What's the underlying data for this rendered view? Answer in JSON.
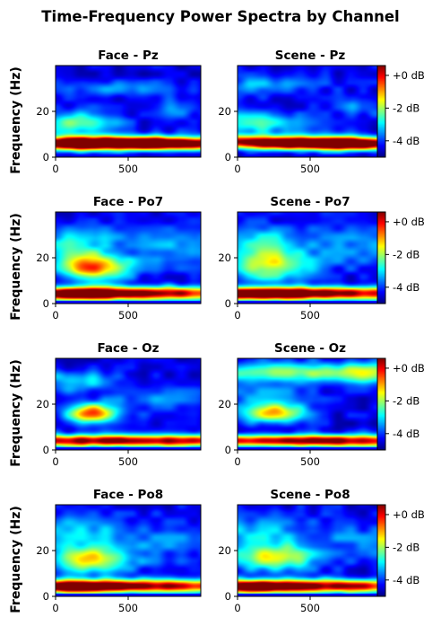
{
  "figure": {
    "title": "Time-Frequency Power Spectra by Channel",
    "ylabel": "Frequency (Hz)"
  },
  "colorbar": {
    "colormap": "jet",
    "range_db": [
      -5,
      0.6
    ],
    "ticks": [
      0,
      -2,
      -4
    ],
    "tick_labels": [
      "+0 dB",
      "-2 dB",
      "-4 dB"
    ]
  },
  "chart_data": [
    {
      "type": "heatmap",
      "condition": "Face",
      "channel": "Pz",
      "title": "Face - Pz",
      "xlim": [
        0,
        1000
      ],
      "ylim": [
        0,
        40
      ],
      "xticks": [
        0,
        500
      ],
      "yticks": [
        0,
        20
      ],
      "features": [
        {
          "t": 340,
          "f": 6.5,
          "st": 600,
          "sf": 2.0,
          "a": 1.0
        },
        {
          "t": 750,
          "f": 5.5,
          "st": 380,
          "sf": 1.8,
          "a": 0.65
        },
        {
          "t": 80,
          "f": 5.0,
          "st": 200,
          "sf": 1.8,
          "a": 0.4
        },
        {
          "t": 150,
          "f": 15,
          "st": 200,
          "sf": 3.5,
          "a": 0.4
        },
        {
          "t": 850,
          "f": 21,
          "st": 100,
          "sf": 3.0,
          "a": 0.18
        },
        {
          "t": 400,
          "f": 30,
          "st": 260,
          "sf": 2.5,
          "a": 0.2
        }
      ]
    },
    {
      "type": "heatmap",
      "condition": "Scene",
      "channel": "Pz",
      "title": "Scene - Pz",
      "xlim": [
        0,
        1000
      ],
      "ylim": [
        0,
        40
      ],
      "xticks": [
        0,
        500
      ],
      "yticks": [
        0,
        20
      ],
      "features": [
        {
          "t": 350,
          "f": 6.5,
          "st": 600,
          "sf": 2.0,
          "a": 1.0
        },
        {
          "t": 750,
          "f": 5.5,
          "st": 380,
          "sf": 1.8,
          "a": 0.65
        },
        {
          "t": 100,
          "f": 15,
          "st": 220,
          "sf": 3.5,
          "a": 0.4
        },
        {
          "t": 150,
          "f": 31,
          "st": 300,
          "sf": 3.0,
          "a": 0.22
        },
        {
          "t": 850,
          "f": 22,
          "st": 100,
          "sf": 3.0,
          "a": 0.18
        }
      ]
    },
    {
      "type": "heatmap",
      "condition": "Face",
      "channel": "Po7",
      "title": "Face - Po7",
      "xlim": [
        0,
        1000
      ],
      "ylim": [
        0,
        40
      ],
      "xticks": [
        0,
        500
      ],
      "yticks": [
        0,
        20
      ],
      "features": [
        {
          "t": 560,
          "f": 4.5,
          "st": 700,
          "sf": 2.0,
          "a": 1.0
        },
        {
          "t": 100,
          "f": 4.0,
          "st": 260,
          "sf": 1.8,
          "a": 0.5
        },
        {
          "t": 260,
          "f": 16,
          "st": 170,
          "sf": 4.0,
          "a": 0.75
        },
        {
          "t": 130,
          "f": 27,
          "st": 220,
          "sf": 5.0,
          "a": 0.3
        },
        {
          "t": 850,
          "f": 25,
          "st": 220,
          "sf": 6.0,
          "a": 0.22
        }
      ]
    },
    {
      "type": "heatmap",
      "condition": "Scene",
      "channel": "Po7",
      "title": "Scene - Po7",
      "xlim": [
        0,
        1000
      ],
      "ylim": [
        0,
        40
      ],
      "xticks": [
        0,
        500
      ],
      "yticks": [
        0,
        20
      ],
      "features": [
        {
          "t": 560,
          "f": 4.5,
          "st": 700,
          "sf": 2.0,
          "a": 1.0
        },
        {
          "t": 100,
          "f": 4.0,
          "st": 260,
          "sf": 1.8,
          "a": 0.5
        },
        {
          "t": 240,
          "f": 17,
          "st": 200,
          "sf": 5.0,
          "a": 0.55
        },
        {
          "t": 150,
          "f": 28,
          "st": 220,
          "sf": 5.0,
          "a": 0.25
        },
        {
          "t": 850,
          "f": 25,
          "st": 220,
          "sf": 6.0,
          "a": 0.2
        }
      ]
    },
    {
      "type": "heatmap",
      "condition": "Face",
      "channel": "Oz",
      "title": "Face - Oz",
      "xlim": [
        0,
        1000
      ],
      "ylim": [
        0,
        40
      ],
      "xticks": [
        0,
        500
      ],
      "yticks": [
        0,
        20
      ],
      "features": [
        {
          "t": 450,
          "f": 4.0,
          "st": 900,
          "sf": 1.8,
          "a": 1.0
        },
        {
          "t": 260,
          "f": 16,
          "st": 120,
          "sf": 3.0,
          "a": 0.75
        },
        {
          "t": 150,
          "f": 30,
          "st": 200,
          "sf": 3.0,
          "a": 0.3
        },
        {
          "t": 700,
          "f": 22,
          "st": 250,
          "sf": 4.0,
          "a": 0.15
        }
      ]
    },
    {
      "type": "heatmap",
      "condition": "Scene",
      "channel": "Oz",
      "title": "Scene - Oz",
      "xlim": [
        0,
        1000
      ],
      "ylim": [
        0,
        40
      ],
      "xticks": [
        0,
        500
      ],
      "yticks": [
        0,
        20
      ],
      "features": [
        {
          "t": 500,
          "f": 4.0,
          "st": 900,
          "sf": 1.8,
          "a": 1.0
        },
        {
          "t": 250,
          "f": 16,
          "st": 150,
          "sf": 3.0,
          "a": 0.65
        },
        {
          "t": 350,
          "f": 34,
          "st": 500,
          "sf": 3.0,
          "a": 0.45
        },
        {
          "t": 880,
          "f": 33,
          "st": 150,
          "sf": 3.0,
          "a": 0.35
        },
        {
          "t": 150,
          "f": 24,
          "st": 250,
          "sf": 4.0,
          "a": 0.18
        }
      ]
    },
    {
      "type": "heatmap",
      "condition": "Face",
      "channel": "Po8",
      "title": "Face - Po8",
      "xlim": [
        0,
        1000
      ],
      "ylim": [
        0,
        40
      ],
      "xticks": [
        0,
        500
      ],
      "yticks": [
        0,
        20
      ],
      "features": [
        {
          "t": 500,
          "f": 4.5,
          "st": 800,
          "sf": 2.0,
          "a": 1.0
        },
        {
          "t": 100,
          "f": 4.0,
          "st": 200,
          "sf": 1.8,
          "a": 0.45
        },
        {
          "t": 250,
          "f": 16,
          "st": 200,
          "sf": 4.0,
          "a": 0.6
        },
        {
          "t": 150,
          "f": 28,
          "st": 250,
          "sf": 5.0,
          "a": 0.25
        },
        {
          "t": 850,
          "f": 24,
          "st": 250,
          "sf": 6.0,
          "a": 0.15
        }
      ]
    },
    {
      "type": "heatmap",
      "condition": "Scene",
      "channel": "Po8",
      "title": "Scene - Po8",
      "xlim": [
        0,
        1000
      ],
      "ylim": [
        0,
        40
      ],
      "xticks": [
        0,
        500
      ],
      "yticks": [
        0,
        20
      ],
      "features": [
        {
          "t": 500,
          "f": 4.5,
          "st": 800,
          "sf": 2.0,
          "a": 1.0
        },
        {
          "t": 100,
          "f": 4.0,
          "st": 200,
          "sf": 1.8,
          "a": 0.45
        },
        {
          "t": 250,
          "f": 17,
          "st": 200,
          "sf": 4.0,
          "a": 0.55
        },
        {
          "t": 150,
          "f": 28,
          "st": 250,
          "sf": 5.0,
          "a": 0.25
        },
        {
          "t": 850,
          "f": 24,
          "st": 250,
          "sf": 6.0,
          "a": 0.15
        }
      ]
    }
  ]
}
